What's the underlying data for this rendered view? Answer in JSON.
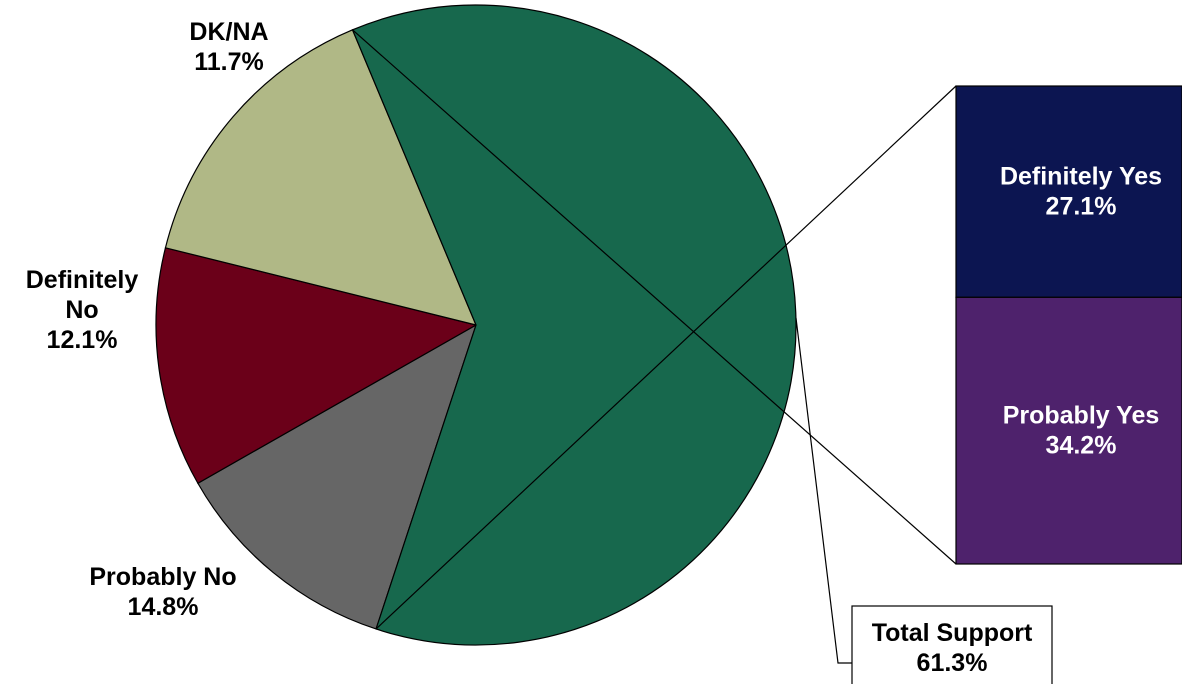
{
  "chart_data": {
    "type": "pie",
    "subtype": "pie-of-bar",
    "title": "",
    "slices": [
      {
        "label_lines": [
          "DK/NA"
        ],
        "value_label": "11.7%",
        "value": 11.7,
        "color": "#666666"
      },
      {
        "label_lines": [
          "Definitely",
          "No"
        ],
        "value_label": "12.1%",
        "value": 12.1,
        "color": "#6b0019"
      },
      {
        "label_lines": [
          "Probably No"
        ],
        "value_label": "14.8%",
        "value": 14.8,
        "color": "#b0b886"
      },
      {
        "label_lines": [],
        "value_label": "",
        "value": 61.3,
        "color": "#17684d",
        "exploded": true
      }
    ],
    "bar_of_pie": {
      "segments": [
        {
          "label": "Definitely Yes",
          "value_label": "27.1%",
          "value": 27.1,
          "color": "#0c1551"
        },
        {
          "label": "Probably Yes",
          "value_label": "34.2%",
          "value": 34.2,
          "color": "#4e226c"
        }
      ],
      "total_label": "Total Support",
      "total_value_label": "61.3%",
      "total_value": 61.3
    }
  }
}
